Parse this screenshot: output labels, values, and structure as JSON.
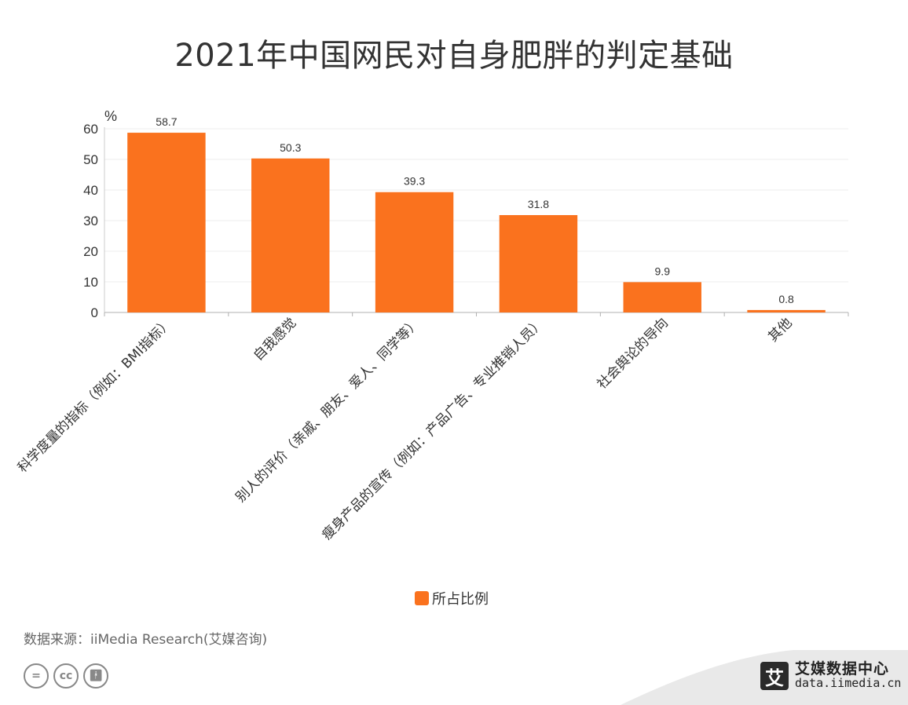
{
  "title": "2021年中国网民对自身肥胖的判定基础",
  "source": "数据来源：iiMedia Research(艾媒咨询)",
  "brand": {
    "name": "艾媒数据中心",
    "url": "data.iimedia.cn",
    "logo_char": "艾"
  },
  "license_icons": [
    "equals-icon",
    "cc-icon",
    "person-icon"
  ],
  "colors": {
    "bar": "#FA721E",
    "axis": "#cccccc",
    "grid": "#ececec",
    "text": "#333333"
  },
  "chart_data": {
    "type": "bar",
    "categories": [
      "科学度量的指标（例如：BMI指标）",
      "自我感觉",
      "别人的评价（亲戚、朋友、爱人、同学等）",
      "瘦身产品的宣传（例如：产品广告、专业推销人员）",
      "社会舆论的导向",
      "其他"
    ],
    "series": [
      {
        "name": "所占比例",
        "values": [
          58.7,
          50.3,
          39.3,
          31.8,
          9.9,
          0.8
        ]
      }
    ],
    "ylabel": "%",
    "ylim": [
      0,
      60
    ],
    "yticks": [
      0,
      10,
      20,
      30,
      40,
      50,
      60
    ],
    "grid": true,
    "legend_position": "bottom"
  }
}
